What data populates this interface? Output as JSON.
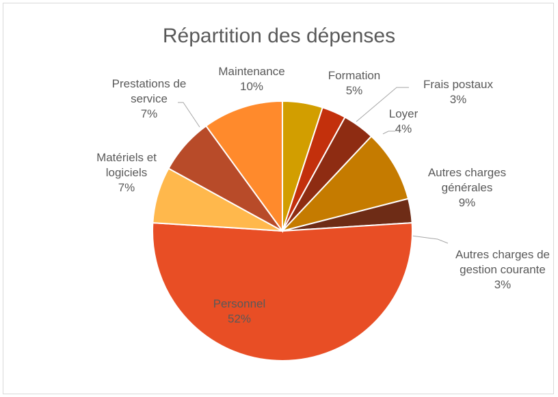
{
  "chart_data": {
    "type": "pie",
    "title": "Répartition des dépenses",
    "categories": [
      "Formation",
      "Frais postaux",
      "Loyer",
      "Autres charges générales",
      "Autres charges de gestion courante",
      "Personnel",
      "Matériels et logiciels",
      "Prestations de service",
      "Maintenance"
    ],
    "values": [
      5,
      3,
      4,
      9,
      3,
      52,
      7,
      7,
      10
    ],
    "value_labels": [
      "5%",
      "3%",
      "4%",
      "9%",
      "3%",
      "52%",
      "7%",
      "7%",
      "10%"
    ],
    "colors": [
      "#D29E00",
      "#C3300C",
      "#8E2C12",
      "#C57B00",
      "#6E2C16",
      "#E84E25",
      "#FFB84C",
      "#B84B29",
      "#FF8A2C"
    ]
  }
}
